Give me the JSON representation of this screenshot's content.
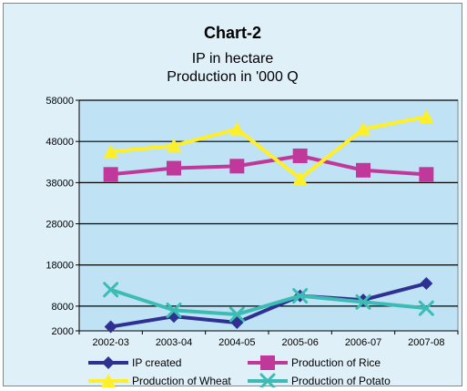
{
  "chart_data": {
    "type": "line",
    "title": "Chart-2",
    "subtitle_lines": [
      "IP in hectare",
      "Production in '000 Q"
    ],
    "categories": [
      "2002-03",
      "2003-04",
      "2004-05",
      "2005-06",
      "2006-07",
      "2007-08"
    ],
    "ylim": [
      2000,
      58000
    ],
    "yticks": [
      2000,
      8000,
      18000,
      28000,
      38000,
      48000,
      58000
    ],
    "series": [
      {
        "name": "IP created",
        "values": [
          3000,
          5500,
          4000,
          10500,
          9500,
          13500
        ],
        "color": "#2e3192",
        "marker": "diamond"
      },
      {
        "name": "Production of Rice",
        "values": [
          40000,
          41500,
          42000,
          44500,
          41000,
          40000
        ],
        "color": "#c0389a",
        "marker": "square"
      },
      {
        "name": "Production of Wheat",
        "values": [
          45500,
          47000,
          51000,
          39000,
          51000,
          54000
        ],
        "color": "#ffef29",
        "marker": "triangle"
      },
      {
        "name": "Production of Potato",
        "values": [
          12000,
          7000,
          6000,
          10500,
          9000,
          7500
        ],
        "color": "#3cbcb4",
        "marker": "x"
      }
    ],
    "grid": true,
    "legend_position": "bottom"
  }
}
